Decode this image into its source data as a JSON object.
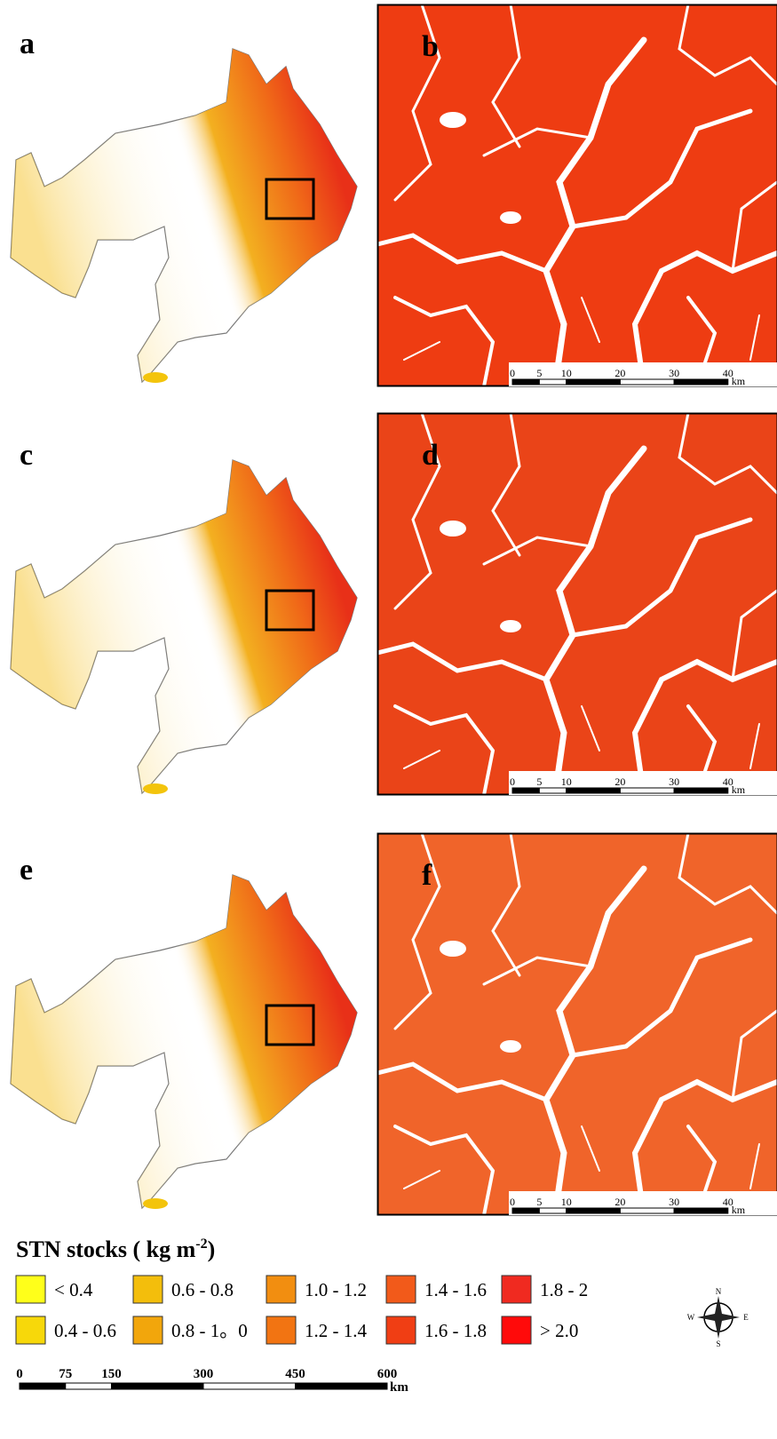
{
  "panels": [
    {
      "label": "a",
      "kind": "overview"
    },
    {
      "label": "b",
      "kind": "zoom"
    },
    {
      "label": "c",
      "kind": "overview"
    },
    {
      "label": "d",
      "kind": "zoom"
    },
    {
      "label": "e",
      "kind": "overview"
    },
    {
      "label": "f",
      "kind": "zoom"
    }
  ],
  "zoom_scale_bar": {
    "ticks": [
      0,
      5,
      10,
      20,
      30,
      40
    ],
    "unit": "km"
  },
  "legend": {
    "title": "STN stocks ( kg m",
    "superscript": "-2",
    "title_end": ")",
    "items": [
      {
        "label": "< 0.4",
        "color": "#ffff1a"
      },
      {
        "label": "0.4 - 0.6",
        "color": "#f7d80a"
      },
      {
        "label": "0.6 - 0.8",
        "color": "#f3be0c"
      },
      {
        "label": "0.8 - 1。0",
        "color": "#f2a60c"
      },
      {
        "label": "1.0 - 1.2",
        "color": "#f28e10"
      },
      {
        "label": "1.2 - 1.4",
        "color": "#f27412"
      },
      {
        "label": "1.4 - 1.6",
        "color": "#f25a1a"
      },
      {
        "label": "1.6 - 1.8",
        "color": "#f03e14"
      },
      {
        "label": "1.8 - 2",
        "color": "#f02a20"
      },
      {
        "label": "> 2.0",
        "color": "#ff0a0a"
      }
    ]
  },
  "compass": {
    "north": "N",
    "south": "S",
    "west": "W",
    "east": "E"
  },
  "map_scale_bar": {
    "ticks": [
      0,
      75,
      150,
      300,
      450,
      600
    ],
    "unit": "km"
  }
}
